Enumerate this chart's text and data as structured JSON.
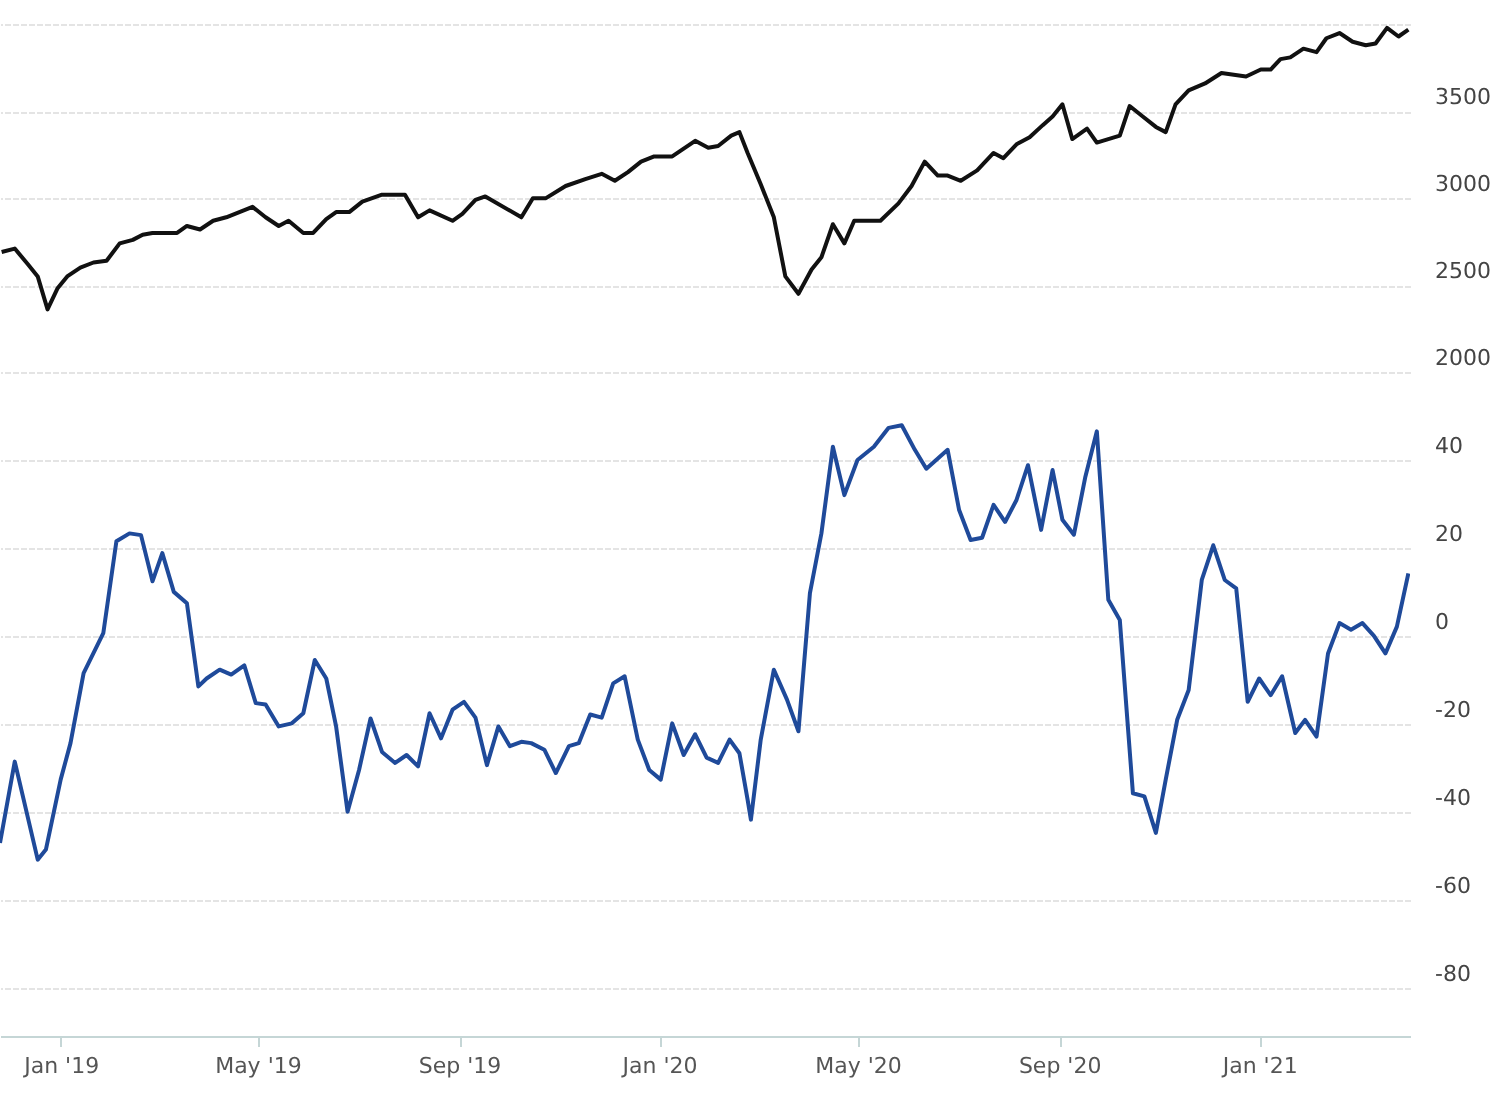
{
  "chart_data": [
    {
      "type": "line",
      "xlim": [
        "2018-11-25",
        "2021-04-03"
      ],
      "ylim": [
        2000,
        4140
      ],
      "yticks": [
        2000,
        2500,
        3000,
        3500,
        {
          "value": 4000,
          "label": null
        }
      ],
      "grid": "y",
      "tick_labels": "y",
      "series": [
        {
          "color": "#111111",
          "x": [
            "2018-11-26",
            "2018-12-04",
            "2018-12-12",
            "2018-12-18",
            "2018-12-24",
            "2018-12-30",
            "2019-01-05",
            "2019-01-13",
            "2019-01-21",
            "2019-01-29",
            "2019-02-06",
            "2019-02-14",
            "2019-02-20",
            "2019-02-26",
            "2019-03-13",
            "2019-03-19",
            "2019-03-27",
            "2019-04-04",
            "2019-04-12",
            "2019-04-28",
            "2019-05-06",
            "2019-05-14",
            "2019-05-20",
            "2019-05-29",
            "2019-06-04",
            "2019-06-12",
            "2019-06-18",
            "2019-06-26",
            "2019-07-04",
            "2019-07-16",
            "2019-07-30",
            "2019-08-07",
            "2019-08-14",
            "2019-08-28",
            "2019-09-03",
            "2019-09-11",
            "2019-09-17",
            "2019-10-09",
            "2019-10-16",
            "2019-10-24",
            "2019-11-05",
            "2019-11-17",
            "2019-11-27",
            "2019-12-05",
            "2019-12-13",
            "2019-12-21",
            "2019-12-29",
            "2020-01-09",
            "2020-01-23",
            "2020-01-31",
            "2020-02-06",
            "2020-02-14",
            "2020-02-19",
            "2020-02-24",
            "2020-03-03",
            "2020-03-11",
            "2020-03-18",
            "2020-03-26",
            "2020-04-03",
            "2020-04-09",
            "2020-04-16",
            "2020-04-23",
            "2020-04-29",
            "2020-05-15",
            "2020-05-26",
            "2020-06-03",
            "2020-06-11",
            "2020-06-19",
            "2020-06-25",
            "2020-07-03",
            "2020-07-13",
            "2020-07-23",
            "2020-07-29",
            "2020-08-06",
            "2020-08-14",
            "2020-08-22",
            "2020-08-28",
            "2020-09-03",
            "2020-09-09",
            "2020-09-18",
            "2020-09-24",
            "2020-10-08",
            "2020-10-14",
            "2020-10-22",
            "2020-10-30",
            "2020-11-05",
            "2020-11-11",
            "2020-11-19",
            "2020-11-29",
            "2020-12-09",
            "2020-12-24",
            "2021-01-02",
            "2021-01-08",
            "2021-01-14",
            "2021-01-20",
            "2021-01-28",
            "2021-02-05",
            "2021-02-11",
            "2021-02-19",
            "2021-02-27",
            "2021-03-07",
            "2021-03-13",
            "2021-03-20",
            "2021-03-27",
            "2021-04-02"
          ],
          "values": [
            2690,
            2710,
            2620,
            2550,
            2360,
            2480,
            2550,
            2600,
            2630,
            2640,
            2740,
            2760,
            2790,
            2800,
            2800,
            2840,
            2820,
            2870,
            2890,
            2950,
            2890,
            2840,
            2870,
            2800,
            2800,
            2880,
            2920,
            2920,
            2980,
            3020,
            3020,
            2890,
            2930,
            2870,
            2910,
            2990,
            3010,
            2890,
            3000,
            3000,
            3070,
            3110,
            3140,
            3100,
            3150,
            3210,
            3240,
            3240,
            3330,
            3290,
            3300,
            3360,
            3380,
            3260,
            3080,
            2890,
            2550,
            2450,
            2590,
            2660,
            2850,
            2740,
            2870,
            2870,
            2970,
            3070,
            3210,
            3130,
            3130,
            3100,
            3160,
            3260,
            3230,
            3310,
            3350,
            3420,
            3470,
            3540,
            3340,
            3400,
            3320,
            3360,
            3530,
            3470,
            3410,
            3380,
            3540,
            3620,
            3660,
            3720,
            3700,
            3740,
            3740,
            3800,
            3810,
            3860,
            3840,
            3920,
            3950,
            3900,
            3880,
            3890,
            3980,
            3930,
            3970
          ]
        }
      ]
    },
    {
      "type": "line",
      "xlim": [
        "2018-11-25",
        "2021-04-03"
      ],
      "xticks": [
        {
          "value": "2019-01-01",
          "label": "Jan '19"
        },
        {
          "value": "2019-05-01",
          "label": "May '19"
        },
        {
          "value": "2019-09-01",
          "label": "Sep '19"
        },
        {
          "value": "2020-01-01",
          "label": "Jan '20"
        },
        {
          "value": "2020-05-01",
          "label": "May '20"
        },
        {
          "value": "2020-09-01",
          "label": "Sep '20"
        },
        {
          "value": "2021-01-01",
          "label": "Jan '21"
        }
      ],
      "ylim": [
        -91,
        60
      ],
      "yticks": [
        -80,
        -60,
        -40,
        -20,
        0,
        20,
        40,
        {
          "value": 60,
          "label": null
        }
      ],
      "grid": "y",
      "series": [
        {
          "color": "#1f4a9a",
          "x": [
            "2018-11-25",
            "2018-12-04",
            "2018-12-18",
            "2018-12-23",
            "2019-01-01",
            "2019-01-07",
            "2019-01-15",
            "2019-01-27",
            "2019-02-04",
            "2019-02-12",
            "2019-02-19",
            "2019-02-26",
            "2019-03-04",
            "2019-03-11",
            "2019-03-19",
            "2019-03-26",
            "2019-03-31",
            "2019-04-08",
            "2019-04-15",
            "2019-04-23",
            "2019-04-30",
            "2019-05-06",
            "2019-05-14",
            "2019-05-22",
            "2019-05-29",
            "2019-06-05",
            "2019-06-12",
            "2019-06-18",
            "2019-06-25",
            "2019-07-02",
            "2019-07-09",
            "2019-07-16",
            "2019-07-24",
            "2019-07-31",
            "2019-08-07",
            "2019-08-14",
            "2019-08-21",
            "2019-08-28",
            "2019-09-04",
            "2019-09-11",
            "2019-09-18",
            "2019-09-25",
            "2019-10-02",
            "2019-10-09",
            "2019-10-15",
            "2019-10-23",
            "2019-10-30",
            "2019-11-07",
            "2019-11-13",
            "2019-11-20",
            "2019-11-27",
            "2019-12-04",
            "2019-12-11",
            "2019-12-19",
            "2019-12-26",
            "2020-01-02",
            "2020-01-09",
            "2020-01-16",
            "2020-01-23",
            "2020-01-30",
            "2020-02-06",
            "2020-02-13",
            "2020-02-19",
            "2020-02-24",
            "2020-02-26",
            "2020-03-03",
            "2020-03-11",
            "2020-03-19",
            "2020-03-26",
            "2020-04-02",
            "2020-04-09",
            "2020-04-16",
            "2020-04-23",
            "2020-05-01",
            "2020-05-11",
            "2020-05-20",
            "2020-05-28",
            "2020-06-05",
            "2020-06-12",
            "2020-06-25",
            "2020-07-02",
            "2020-07-09",
            "2020-07-16",
            "2020-07-23",
            "2020-07-30",
            "2020-08-06",
            "2020-08-13",
            "2020-08-21",
            "2020-08-28",
            "2020-09-03",
            "2020-09-10",
            "2020-09-17",
            "2020-09-24",
            "2020-10-01",
            "2020-10-08",
            "2020-10-16",
            "2020-10-23",
            "2020-10-30",
            "2020-11-05",
            "2020-11-12",
            "2020-11-19",
            "2020-11-27",
            "2020-12-04",
            "2020-12-11",
            "2020-12-18",
            "2020-12-25",
            "2021-01-01",
            "2021-01-08",
            "2021-01-15",
            "2021-01-23",
            "2021-01-29",
            "2021-02-05",
            "2021-02-12",
            "2021-02-19",
            "2021-02-26",
            "2021-03-05",
            "2021-03-12",
            "2021-03-19",
            "2021-03-26",
            "2021-04-02"
          ],
          "values": [
            -47.1,
            -28.6,
            -50.9,
            -48.6,
            -32.7,
            -24.4,
            -8.5,
            0.6,
            21.5,
            23.3,
            22.9,
            12.4,
            18.8,
            10,
            7.4,
            -11.5,
            -9.7,
            -7.7,
            -8.8,
            -6.7,
            -15.3,
            -15.6,
            -20.6,
            -19.9,
            -17.6,
            -5.5,
            -9.7,
            -20.6,
            -40,
            -30.5,
            -18.8,
            -26.4,
            -28.9,
            -27.1,
            -29.7,
            -17.6,
            -23.3,
            -16.8,
            -15,
            -18.6,
            -29.4,
            -20.6,
            -25.1,
            -24.1,
            -24.4,
            -25.9,
            -31.2,
            -25.1,
            -24.4,
            -17.9,
            -18.6,
            -10.8,
            -9.2,
            -23.6,
            -30.5,
            -32.7,
            -19.9,
            -27.1,
            -22.4,
            -27.7,
            -28.9,
            -23.6,
            -26.7,
            -37.3,
            -41.8,
            -23.6,
            -7.7,
            -14.5,
            -21.7,
            9.7,
            23.3,
            43,
            32,
            40,
            43,
            47.3,
            47.9,
            42.3,
            38,
            42.3,
            28.6,
            21.8,
            22.3,
            29.8,
            25.9,
            30.9,
            38.8,
            24.1,
            37.7,
            26.4,
            23,
            36.2,
            46.5,
            8.2,
            3.6,
            -35.8,
            -36.5,
            -44.8,
            -32.7,
            -19.1,
            -12.3,
            12.7,
            20.6,
            12.7,
            10.8,
            -15,
            -9.7,
            -13.5,
            -9.2,
            -22.1,
            -19.1,
            -22.9,
            -4,
            2.9,
            1.4,
            2.9,
            0,
            -4,
            2.1,
            14.2
          ]
        }
      ]
    }
  ]
}
